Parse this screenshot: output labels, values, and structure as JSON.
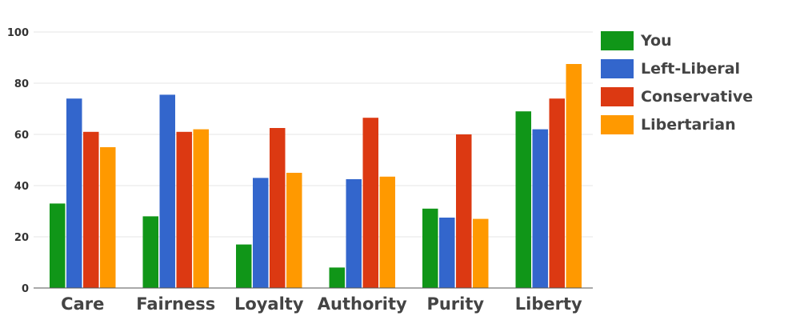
{
  "chart_data": {
    "type": "bar",
    "title": "",
    "xlabel": "",
    "ylabel": "",
    "ylim": [
      0,
      100
    ],
    "yticks": [
      0,
      20,
      40,
      60,
      80,
      100
    ],
    "grid": true,
    "legend_position": "right",
    "categories": [
      "Care",
      "Fairness",
      "Loyalty",
      "Authority",
      "Purity",
      "Liberty"
    ],
    "series": [
      {
        "name": "You",
        "color": "#109618",
        "values": [
          33,
          28,
          17,
          8,
          31,
          69
        ]
      },
      {
        "name": "Left-Liberal",
        "color": "#3366cc",
        "values": [
          74,
          75.5,
          43,
          42.5,
          27.5,
          62
        ]
      },
      {
        "name": "Conservative",
        "color": "#dc3912",
        "values": [
          61,
          61,
          62.5,
          66.5,
          60,
          74
        ]
      },
      {
        "name": "Libertarian",
        "color": "#ff9900",
        "values": [
          55,
          62,
          45,
          43.5,
          27,
          87.5
        ]
      }
    ]
  }
}
